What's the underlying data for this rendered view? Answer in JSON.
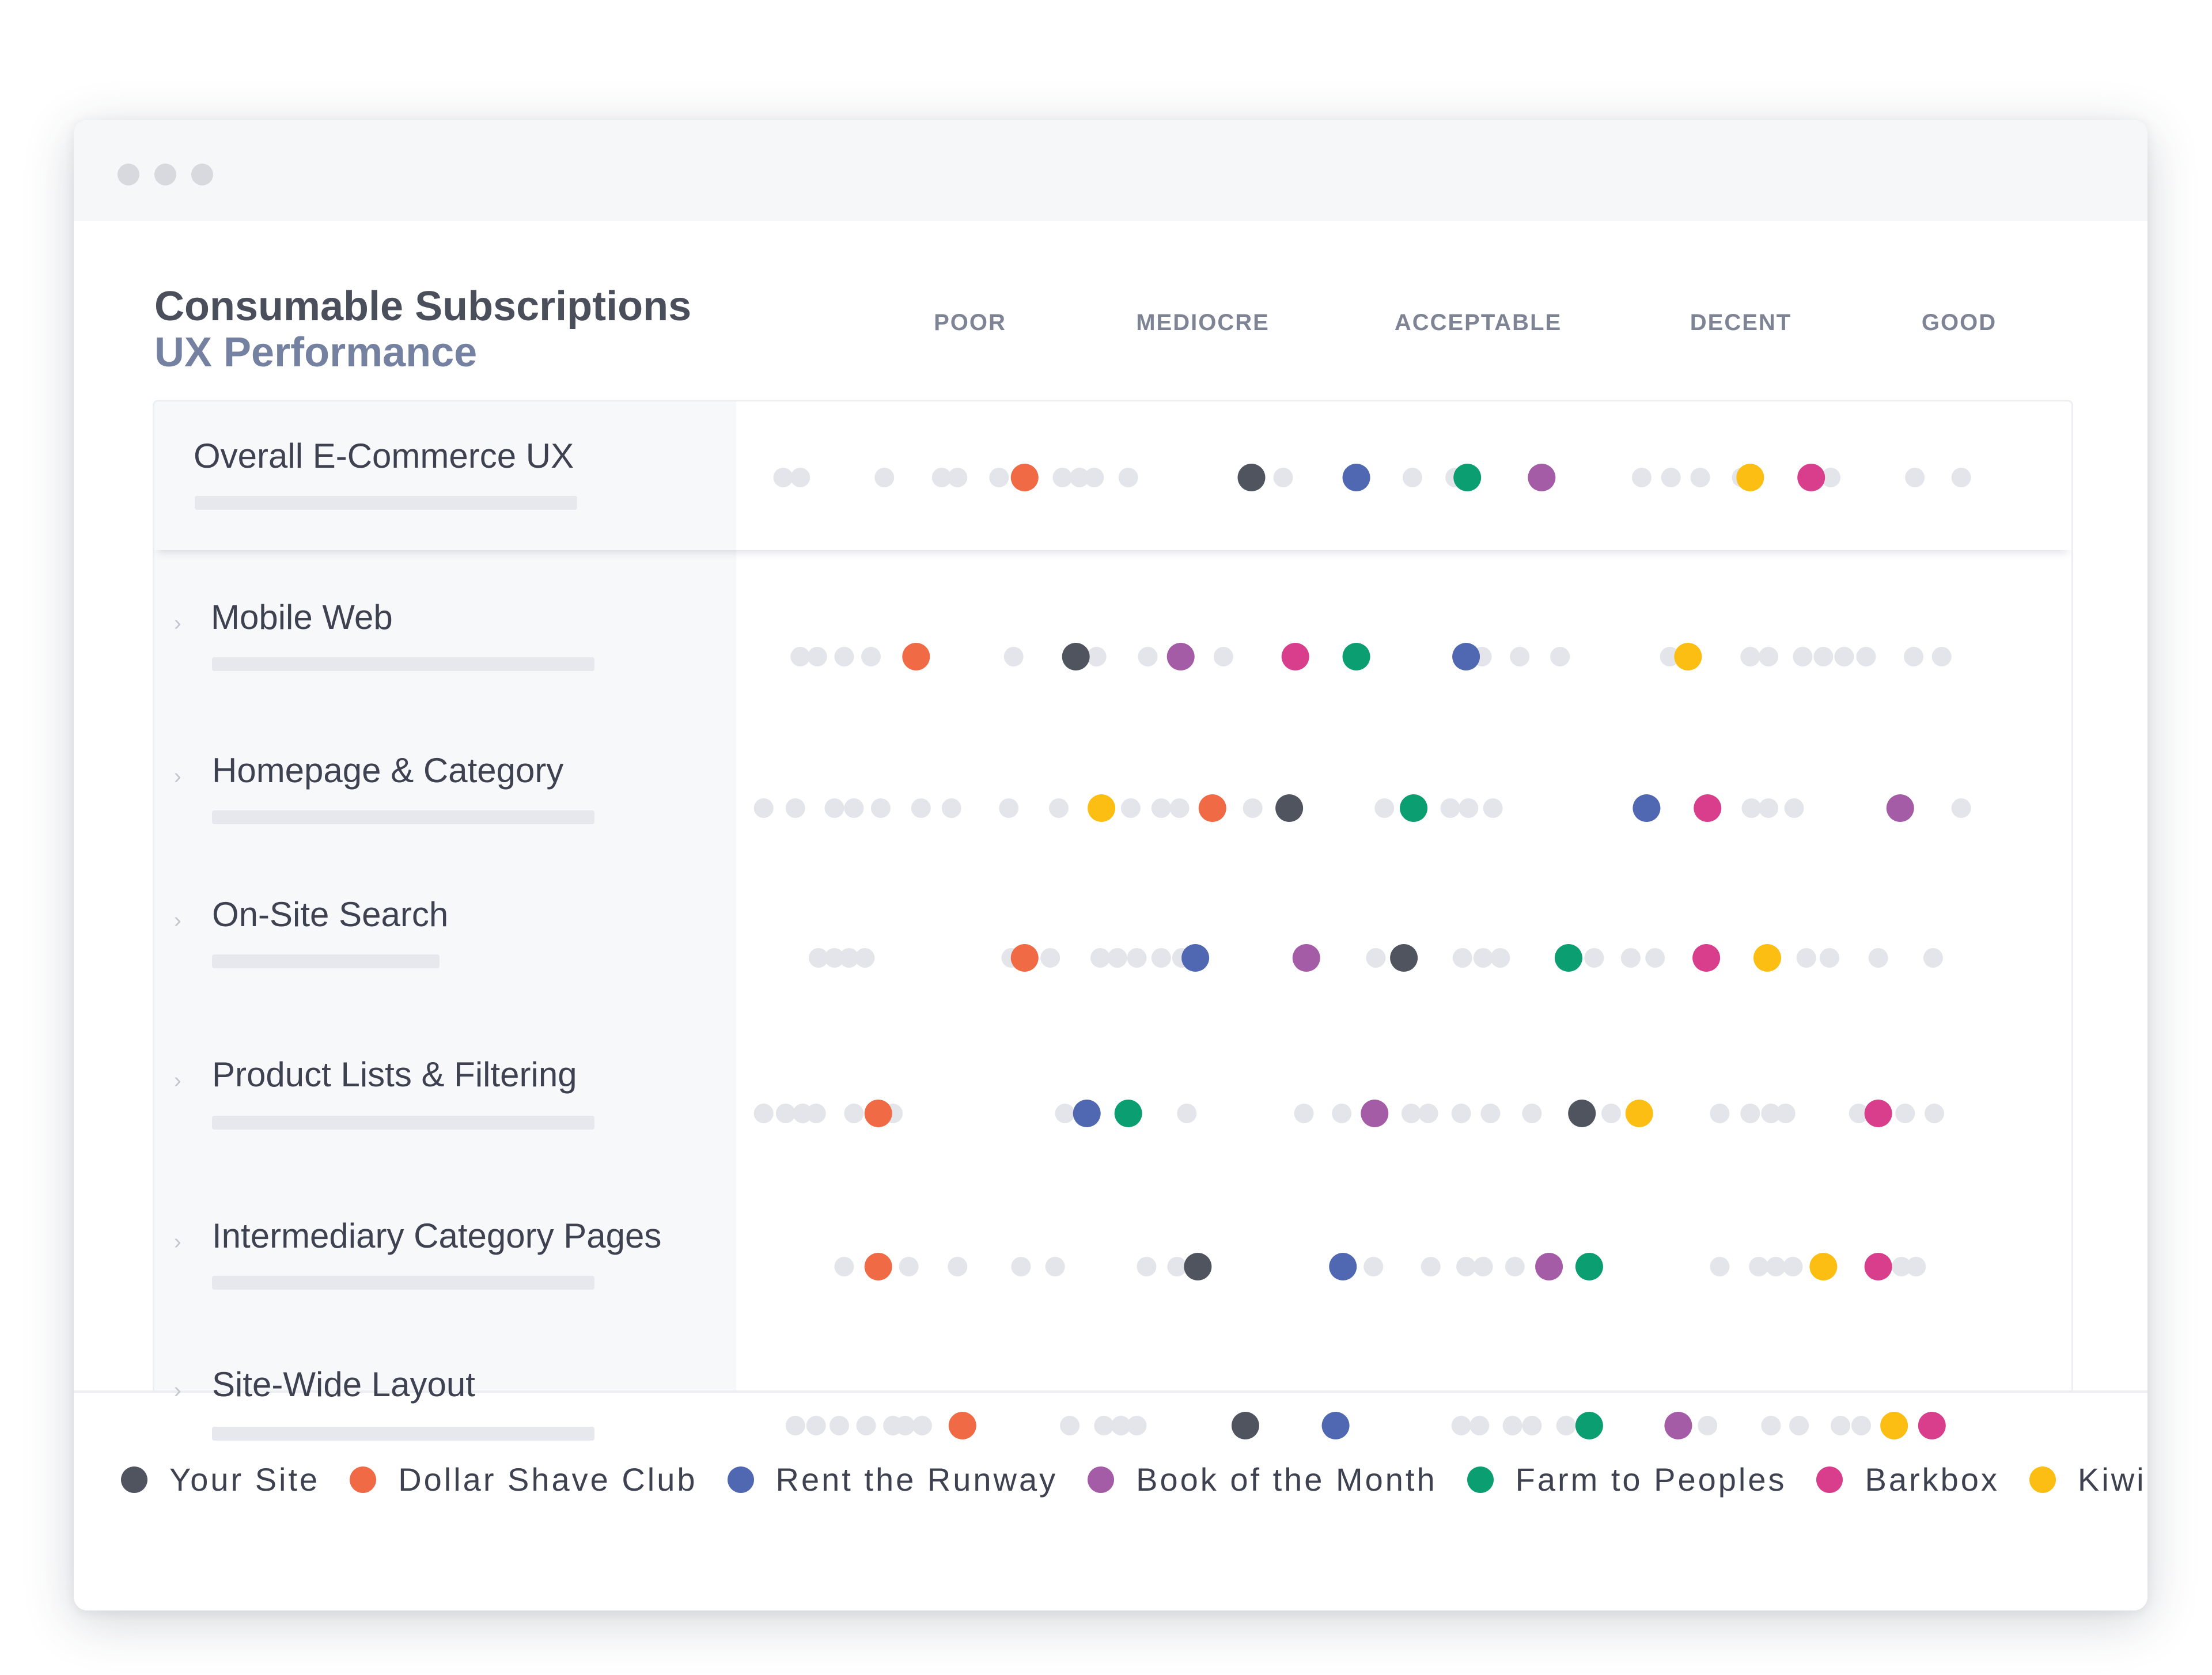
{
  "window": {
    "controls": [
      "close",
      "minimize",
      "maximize"
    ]
  },
  "heading": {
    "line1": "Consumable Subscriptions",
    "line2": "UX Performance"
  },
  "chart_data": {
    "type": "scatter",
    "title": "Consumable Subscriptions UX Performance",
    "columns": [
      "POOR",
      "MEDIOCRE",
      "ACCEPTABLE",
      "DECENT",
      "GOOD"
    ],
    "x_range": [
      0,
      100
    ],
    "scale_note": "x = position on the POOR → GOOD scale, 0 = left edge of dot track, 100 = right edge",
    "grid": false,
    "legend_placement": "bottom",
    "series": [
      {
        "name": "Your Site",
        "color": "#50545f"
      },
      {
        "name": "Dollar Shave Club",
        "color": "#ef6a45"
      },
      {
        "name": "Rent the Runway",
        "color": "#5068b1"
      },
      {
        "name": "Book of the Month",
        "color": "#a55ca6"
      },
      {
        "name": "Farm to Peoples",
        "color": "#0b9e70"
      },
      {
        "name": "Barkbox",
        "color": "#d93e8c"
      },
      {
        "name": "KiwiCo",
        "color": "#fcbe12"
      }
    ],
    "rows": [
      {
        "label": "Overall E-Commerce UX",
        "expandable": false,
        "bar": 0.79,
        "points": {
          "Your Site": 40.6,
          "Dollar Shave Club": 22.0,
          "Rent the Runway": 49.2,
          "Book of the Month": 64.4,
          "Farm to Peoples": 58.3,
          "Barkbox": 86.5,
          "KiwiCo": 81.5
        },
        "benchmarks": [
          2.2,
          3.6,
          10.5,
          15.2,
          16.5,
          19.9,
          25.1,
          26.5,
          27.7,
          30.5,
          43.2,
          53.8,
          57.3,
          72.6,
          75.0,
          77.4,
          80.8,
          88.1,
          95.0,
          98.8
        ]
      },
      {
        "label": "Mobile Web",
        "expandable": true,
        "bar": 0.79,
        "points": {
          "Your Site": 26.2,
          "Dollar Shave Club": 13.1,
          "Rent the Runway": 58.2,
          "Book of the Month": 34.8,
          "Farm to Peoples": 49.2,
          "Barkbox": 44.2,
          "KiwiCo": 76.4
        },
        "benchmarks": [
          3.6,
          5.0,
          7.2,
          9.4,
          21.1,
          27.9,
          32.1,
          38.3,
          59.5,
          62.6,
          65.9,
          74.9,
          81.5,
          83.0,
          85.8,
          87.5,
          89.2,
          91.0,
          94.9,
          97.2
        ]
      },
      {
        "label": "Homepage & Category",
        "expandable": true,
        "bar": 0.79,
        "points": {
          "Your Site": 43.7,
          "Dollar Shave Club": 37.4,
          "Rent the Runway": 73.0,
          "Book of the Month": 93.8,
          "Farm to Peoples": 53.9,
          "Barkbox": 78.0,
          "KiwiCo": 28.3
        },
        "benchmarks": [
          0.6,
          3.2,
          6.4,
          8.0,
          10.2,
          13.5,
          16.0,
          20.7,
          24.8,
          30.7,
          33.2,
          34.7,
          40.7,
          51.5,
          56.9,
          58.4,
          60.4,
          81.6,
          83.0,
          85.1,
          98.8
        ]
      },
      {
        "label": "On-Site Search",
        "expandable": true,
        "bar": 0.47,
        "points": {
          "Your Site": 53.1,
          "Dollar Shave Club": 22.0,
          "Rent the Runway": 36.0,
          "Book of the Month": 45.1,
          "Farm to Peoples": 66.6,
          "Barkbox": 77.9,
          "KiwiCo": 82.9
        },
        "benchmarks": [
          5.1,
          6.4,
          7.6,
          8.9,
          20.9,
          24.1,
          28.2,
          29.6,
          31.2,
          33.2,
          34.9,
          50.8,
          57.9,
          59.6,
          61.0,
          68.7,
          71.7,
          73.7,
          86.1,
          88.0,
          92.0,
          96.5
        ]
      },
      {
        "label": "Product Lists & Filtering",
        "expandable": true,
        "bar": 0.79,
        "points": {
          "Your Site": 67.7,
          "Dollar Shave Club": 10.0,
          "Rent the Runway": 27.1,
          "Book of the Month": 50.7,
          "Farm to Peoples": 30.5,
          "Barkbox": 92.0,
          "KiwiCo": 72.4
        },
        "benchmarks": [
          0.6,
          2.4,
          3.8,
          4.9,
          8.0,
          11.2,
          25.3,
          35.3,
          44.9,
          48.0,
          53.7,
          55.1,
          57.8,
          60.2,
          63.6,
          70.1,
          79.0,
          81.5,
          83.2,
          84.4,
          90.4,
          94.2,
          96.6
        ]
      },
      {
        "label": "Intermediary Category Pages",
        "expandable": true,
        "bar": 0.79,
        "points": {
          "Your Site": 36.2,
          "Dollar Shave Club": 10.0,
          "Rent the Runway": 48.1,
          "Book of the Month": 65.0,
          "Farm to Peoples": 68.3,
          "Barkbox": 92.0,
          "KiwiCo": 87.5
        },
        "benchmarks": [
          7.2,
          12.5,
          16.5,
          21.7,
          24.5,
          32.0,
          34.5,
          50.6,
          55.3,
          58.2,
          59.6,
          62.2,
          79.0,
          82.2,
          83.6,
          85.0,
          93.9,
          95.1
        ]
      },
      {
        "label": "Site-Wide Layout",
        "expandable": true,
        "bar": 0.79,
        "points": {
          "Your Site": 40.1,
          "Dollar Shave Club": 16.9,
          "Rent the Runway": 47.5,
          "Book of the Month": 75.6,
          "Farm to Peoples": 68.3,
          "Barkbox": 96.4,
          "KiwiCo": 93.3
        },
        "benchmarks": [
          3.2,
          4.9,
          6.8,
          9.0,
          11.2,
          12.2,
          13.6,
          25.7,
          28.5,
          29.9,
          31.2,
          57.8,
          59.3,
          62.0,
          63.6,
          66.4,
          78.0,
          83.2,
          85.5,
          88.9,
          90.6
        ]
      }
    ],
    "benchmark_color": "#e3e5ea"
  }
}
